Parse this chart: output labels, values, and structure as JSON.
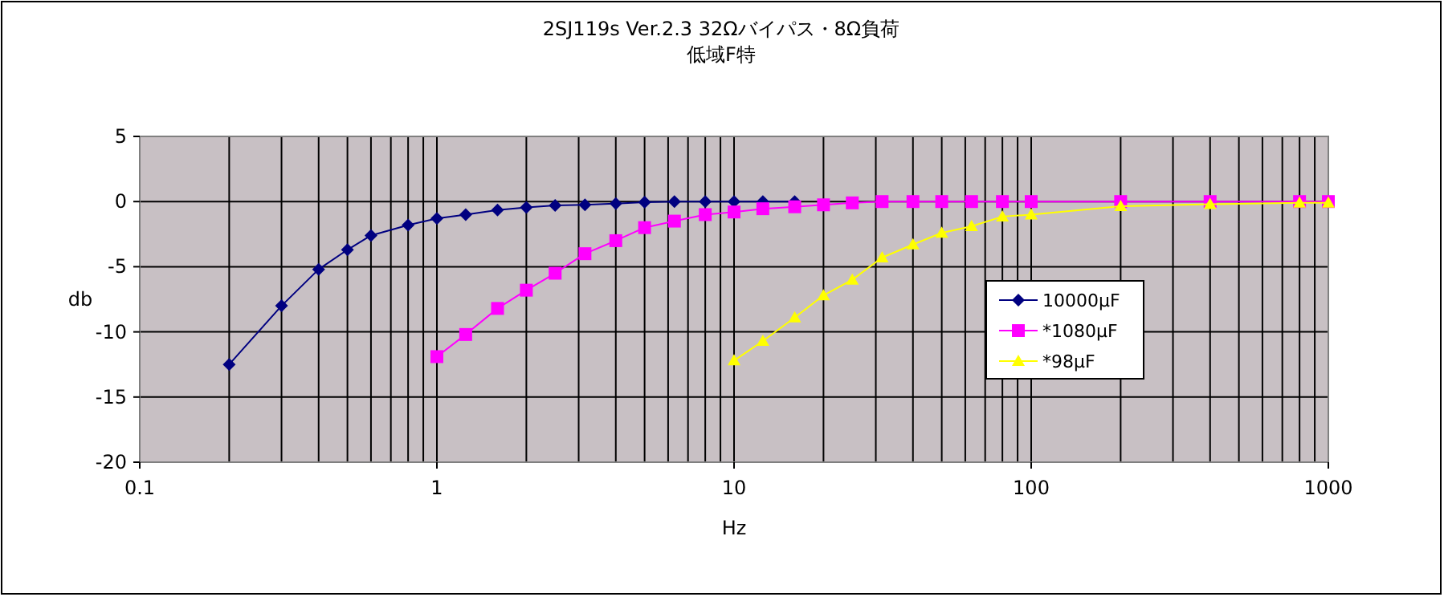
{
  "chart_data": {
    "type": "line",
    "title": "2SJ119s Ver.2.3 32Ωバイパス・8Ω負荷",
    "subtitle": "低域F特",
    "xlabel": "Hz",
    "ylabel": "db",
    "log": "x",
    "xlim": [
      0.1,
      1000
    ],
    "xticks": [
      0.1,
      1,
      10,
      100,
      1000
    ],
    "ylim": [
      -20,
      5
    ],
    "yticks": [
      -20,
      -15,
      -10,
      -5,
      0,
      5
    ],
    "grid": true,
    "legend": "right",
    "line_style": "solid",
    "series": [
      {
        "name": "10000μF",
        "color": "#000080",
        "marker": "diamond",
        "x": [
          0.2,
          0.3,
          0.4,
          0.5,
          0.6,
          0.8,
          1,
          1.25,
          1.6,
          2,
          2.5,
          3.15,
          4,
          5,
          6.3,
          8,
          10,
          12.5,
          16
        ],
        "values": [
          -12.5,
          -8.0,
          -5.2,
          -3.7,
          -2.6,
          -1.8,
          -1.3,
          -1.0,
          -0.65,
          -0.45,
          -0.3,
          -0.25,
          -0.15,
          -0.05,
          0,
          0,
          0,
          0,
          0
        ]
      },
      {
        "name": "*1080μF",
        "color": "#ff00ff",
        "marker": "square",
        "x": [
          1,
          1.25,
          1.6,
          2,
          2.5,
          3.15,
          4,
          5,
          6.3,
          8,
          10,
          12.5,
          16,
          20,
          25,
          31.5,
          40,
          50,
          63,
          80,
          100,
          200,
          400,
          800,
          1000
        ],
        "values": [
          -11.9,
          -10.2,
          -8.2,
          -6.8,
          -5.5,
          -4.0,
          -3.0,
          -2.0,
          -1.5,
          -1.0,
          -0.8,
          -0.55,
          -0.4,
          -0.25,
          -0.1,
          0,
          0,
          0,
          0,
          0,
          0,
          0,
          0,
          0,
          0
        ]
      },
      {
        "name": "*98μF",
        "color": "#ffff00",
        "marker": "triangle",
        "x": [
          10,
          12.5,
          16,
          20,
          25,
          31.5,
          40,
          50,
          63,
          80,
          100,
          200,
          400,
          800,
          1000
        ],
        "values": [
          -12.2,
          -10.7,
          -8.9,
          -7.2,
          -6.0,
          -4.3,
          -3.3,
          -2.4,
          -1.9,
          -1.15,
          -1.0,
          -0.35,
          -0.2,
          -0.1,
          -0.1
        ]
      }
    ]
  }
}
